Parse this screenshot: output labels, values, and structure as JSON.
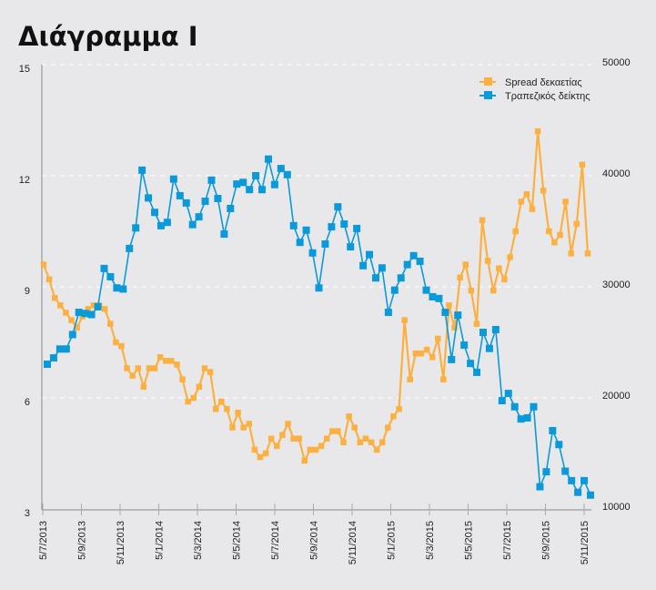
{
  "title": "Διάγραμμα Ι",
  "chart_data": {
    "type": "line",
    "title": "Διάγραμμα Ι",
    "legend_position": "top-right",
    "grid": "horizontal dashed",
    "x_tick_labels": [
      "5/7/2013",
      "5/9/2013",
      "5/11/2013",
      "5/1/2014",
      "5/3/2014",
      "5/5/2014",
      "5/7/2014",
      "5/9/2014",
      "5/11/2014",
      "5/1/2015",
      "5/3/2015",
      "5/5/2015",
      "5/7/2015",
      "5/9/2015",
      "5/11/2015"
    ],
    "y_left": {
      "range": [
        3,
        15
      ],
      "ticks": [
        "3",
        "6",
        "9",
        "12",
        "15"
      ]
    },
    "y_right": {
      "range": [
        10000,
        50000
      ],
      "ticks": [
        "10000",
        "20000",
        "30000",
        "40000",
        "50000"
      ]
    },
    "series": [
      {
        "name": "Spread δεκαετίας",
        "axis": "left",
        "color": "#fbb040",
        "values": [
          9.6,
          9.2,
          8.7,
          8.5,
          8.3,
          8.1,
          7.9,
          8.2,
          8.4,
          8.5,
          8.5,
          8.4,
          8.0,
          7.5,
          7.4,
          6.8,
          6.6,
          6.8,
          6.3,
          6.8,
          6.8,
          7.1,
          7.0,
          7.0,
          6.9,
          6.5,
          5.9,
          6.0,
          6.3,
          6.8,
          6.7,
          5.7,
          5.9,
          5.7,
          5.2,
          5.6,
          5.2,
          5.3,
          4.6,
          4.4,
          4.5,
          4.9,
          4.7,
          5.0,
          5.3,
          4.9,
          4.9,
          4.3,
          4.6,
          4.6,
          4.7,
          4.9,
          5.1,
          5.1,
          4.8,
          5.5,
          5.2,
          4.8,
          4.9,
          4.8,
          4.6,
          4.8,
          5.2,
          5.5,
          5.7,
          8.1,
          6.5,
          7.2,
          7.2,
          7.3,
          7.1,
          7.6,
          6.5,
          8.5,
          7.9,
          9.25,
          9.6,
          8.9,
          8.0,
          10.8,
          9.7,
          8.9,
          9.5,
          9.2,
          9.8,
          10.5,
          11.3,
          11.5,
          11.1,
          13.2,
          11.6,
          10.5,
          10.2,
          10.4,
          11.3,
          9.9,
          10.7,
          12.3,
          9.9
        ]
      },
      {
        "name": "Τραπεζικός δείκτης",
        "axis": "right",
        "color": "#0a9ad9",
        "values": [
          23030,
          23600,
          24400,
          24400,
          25700,
          27700,
          27600,
          27500,
          28200,
          31650,
          30900,
          29900,
          29800,
          33450,
          35300,
          40500,
          38000,
          36700,
          35500,
          35800,
          39700,
          38200,
          37550,
          35600,
          36300,
          37700,
          39600,
          37950,
          34750,
          37050,
          39250,
          39400,
          38750,
          40000,
          38750,
          41500,
          39200,
          40650,
          40100,
          35500,
          34000,
          35100,
          33050,
          29900,
          33850,
          35400,
          37200,
          35650,
          33600,
          35250,
          31900,
          32900,
          30800,
          31700,
          27700,
          29700,
          30800,
          32000,
          32800,
          32300,
          29700,
          29100,
          28950,
          27700,
          23450,
          27450,
          24750,
          23100,
          22300,
          25900,
          24450,
          26150,
          19750,
          20400,
          19200,
          18100,
          18200,
          19200,
          12000,
          13350,
          17050,
          15800,
          13400,
          12550,
          11500,
          12550,
          11250
        ]
      }
    ]
  }
}
